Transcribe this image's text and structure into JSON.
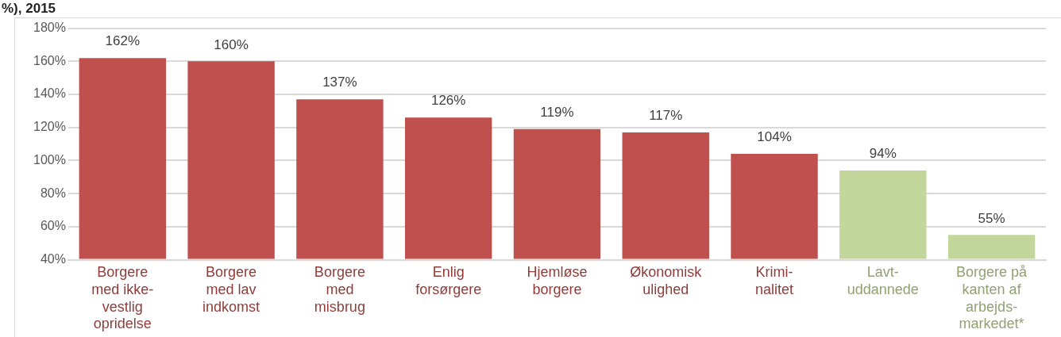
{
  "chart_data": {
    "type": "bar",
    "title": "%), 2015",
    "categories": [
      "Borgere\nmed ikke-\nvestlig\nopridelse",
      "Borgere\nmed lav\nindkomst",
      "Borgere\nmed\nmisbrug",
      "Enlig\nforsørgere",
      "Hjemløse\nborgere",
      "Økonomisk\nulighed",
      "Krimi-\nnalitet",
      "Lavt-\nuddannede",
      "Borgere på\nkanten af\narbejds-\nmarkedet*"
    ],
    "values": [
      162,
      160,
      137,
      126,
      119,
      117,
      104,
      94,
      55
    ],
    "value_labels": [
      "162%",
      "160%",
      "137%",
      "126%",
      "119%",
      "117%",
      "104%",
      "94%",
      "55%"
    ],
    "colors": [
      "#c0504d",
      "#c0504d",
      "#c0504d",
      "#c0504d",
      "#c0504d",
      "#c0504d",
      "#c0504d",
      "#c3d69b",
      "#c3d69b"
    ],
    "ylim": [
      40,
      180
    ],
    "yticks": [
      {
        "value": 40,
        "label": "40%"
      },
      {
        "value": 60,
        "label": "60%"
      },
      {
        "value": 80,
        "label": "80%"
      },
      {
        "value": 100,
        "label": "100%"
      },
      {
        "value": 120,
        "label": "120%"
      },
      {
        "value": 140,
        "label": "140%"
      },
      {
        "value": 160,
        "label": "160%"
      },
      {
        "value": 180,
        "label": "180%"
      }
    ],
    "grid": "y",
    "legend": false
  }
}
